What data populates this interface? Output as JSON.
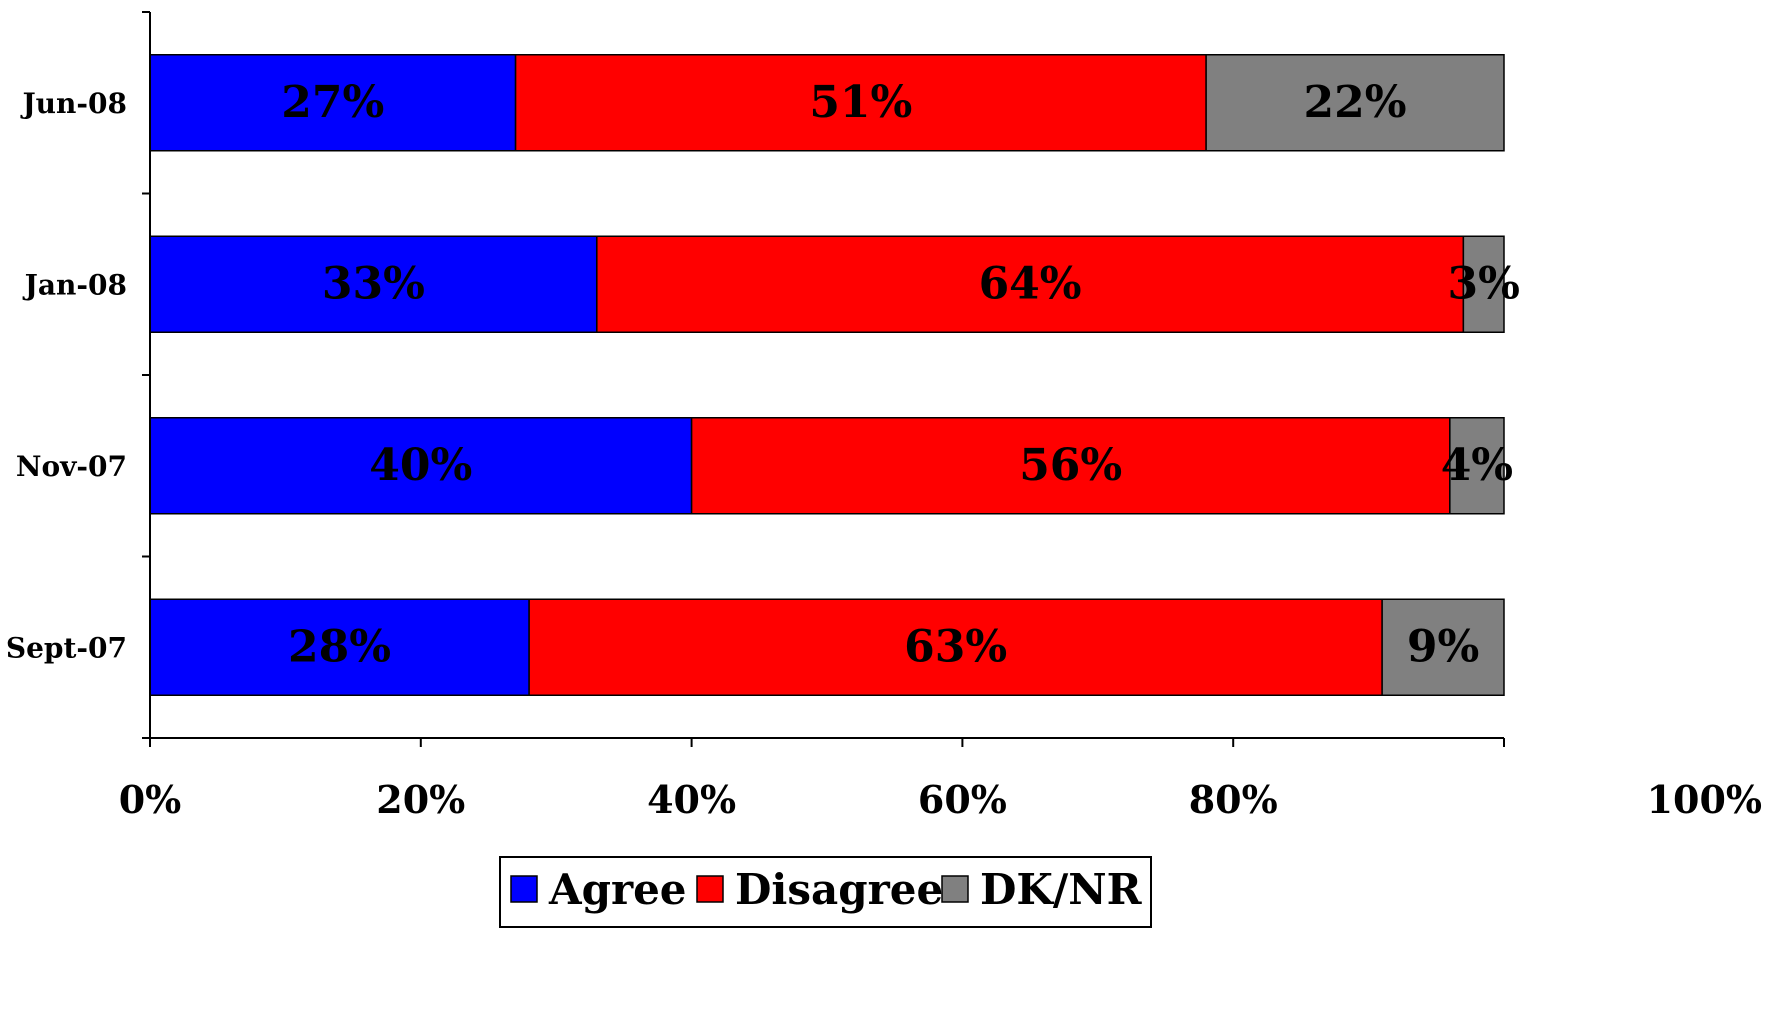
{
  "chart_data": {
    "type": "bar",
    "orientation": "horizontal",
    "stacked": "percent",
    "categories": [
      "Jun-08",
      "Jan-08",
      "Nov-07",
      "Sept-07"
    ],
    "series": [
      {
        "name": "Agree",
        "color": "#0000ff",
        "values": [
          27,
          33,
          40,
          28
        ],
        "labels": [
          "27%",
          "33%",
          "40%",
          "28%"
        ]
      },
      {
        "name": "Disagree",
        "color": "#ff0000",
        "values": [
          51,
          64,
          56,
          63
        ],
        "labels": [
          "51%",
          "64%",
          "56%",
          "63%"
        ]
      },
      {
        "name": "DK/NR",
        "color": "#808080",
        "values": [
          22,
          3,
          4,
          9
        ],
        "labels": [
          "22%",
          "3%",
          "4%",
          "9%"
        ]
      }
    ],
    "xlim": [
      0,
      100
    ],
    "xticks": [
      "0%",
      "20%",
      "40%",
      "60%",
      "80%",
      "100%"
    ],
    "grid": false,
    "legend_position": "bottom",
    "title": "",
    "xlabel": "",
    "ylabel": ""
  }
}
